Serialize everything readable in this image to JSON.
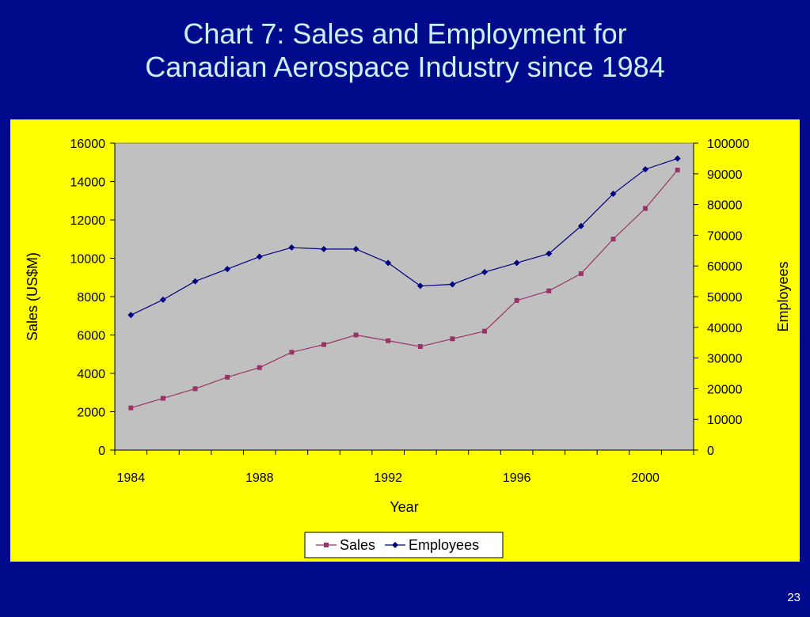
{
  "slide": {
    "title_line1": "Chart 7:  Sales and Employment for",
    "title_line2": "Canadian Aerospace Industry since 1984",
    "page_number": "23"
  },
  "colors": {
    "background": "#020a8c",
    "title": "#c8f0ff",
    "chart_area": "#ffff00",
    "plot_area": "#c0c0c0",
    "sales": "#993366",
    "employees": "#000080"
  },
  "chart_data": {
    "type": "line",
    "xlabel": "Year",
    "ylabel": "Sales (US$M)",
    "y2label": "Employees",
    "x": [
      1984,
      1985,
      1986,
      1987,
      1988,
      1989,
      1990,
      1991,
      1992,
      1993,
      1994,
      1995,
      1996,
      1997,
      1998,
      1999,
      2000,
      2001
    ],
    "x_tick_labels": [
      "1984",
      "1988",
      "1992",
      "1996",
      "2000"
    ],
    "ylim": [
      0,
      16000
    ],
    "y_ticks": [
      0,
      2000,
      4000,
      6000,
      8000,
      10000,
      12000,
      14000,
      16000
    ],
    "y2lim": [
      0,
      100000
    ],
    "y2_ticks": [
      0,
      10000,
      20000,
      30000,
      40000,
      50000,
      60000,
      70000,
      80000,
      90000,
      100000
    ],
    "legend_position": "bottom",
    "grid": false,
    "series": [
      {
        "name": "Sales",
        "axis": "left",
        "marker": "square",
        "color": "#993366",
        "values": [
          2200,
          2700,
          3200,
          3800,
          4300,
          5100,
          5500,
          6000,
          5700,
          5400,
          5800,
          6200,
          7800,
          8300,
          9200,
          11000,
          12600,
          14600
        ]
      },
      {
        "name": "Employees",
        "axis": "right",
        "marker": "diamond",
        "color": "#000080",
        "values": [
          44000,
          49000,
          55000,
          59000,
          63000,
          66000,
          65500,
          65500,
          61000,
          53500,
          54000,
          58000,
          61000,
          64000,
          73000,
          83500,
          91500,
          95000
        ]
      }
    ]
  }
}
